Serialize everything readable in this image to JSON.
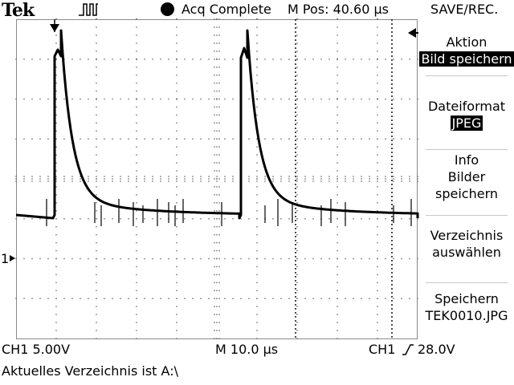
{
  "header": {
    "brand": "Tek",
    "acq_status": "Acq Complete",
    "m_pos": "M Pos: 40.60 μs",
    "menu_title": "SAVE/REC."
  },
  "icons": {
    "trigger_state": "pulse-icon",
    "acq_indicator": "filled-circle-icon",
    "trigger_position": "down-arrow-icon",
    "trigger_level": "left-arrow-icon",
    "ch1_ground": "ch1-ground-marker-icon",
    "trigger_slope": "rising-edge-icon"
  },
  "side_menu": {
    "items": [
      {
        "label": "Aktion",
        "value": "Bild speichern"
      },
      {
        "label": "Dateiformat",
        "value": "JPEG"
      },
      {
        "lines": [
          "Info",
          "Bilder",
          "speichern"
        ]
      },
      {
        "lines": [
          "Verzeichnis",
          "auswählen"
        ]
      },
      {
        "lines": [
          "Speichern",
          "TEK0010.JPG"
        ]
      }
    ]
  },
  "ch1_marker": "1",
  "footer": {
    "ch1_scale": "CH1  5.00V",
    "timebase": "M 10.0 μs",
    "trigger_source": "CH1",
    "trigger_level": "28.0V",
    "status_line": "Aktuelles Verzeichnis ist A:\\"
  },
  "colors": {
    "background": "#ffffff",
    "trace": "#000000",
    "grid": "#8a8a8a"
  }
}
